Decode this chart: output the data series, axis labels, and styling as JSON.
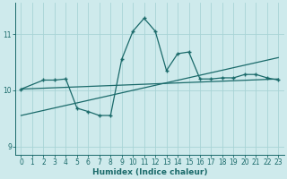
{
  "xlabel": "Humidex (Indice chaleur)",
  "xlim": [
    -0.5,
    23.5
  ],
  "ylim": [
    8.85,
    11.55
  ],
  "yticks": [
    9,
    10,
    11
  ],
  "xticks": [
    0,
    1,
    2,
    3,
    4,
    5,
    6,
    7,
    8,
    9,
    10,
    11,
    12,
    13,
    14,
    15,
    16,
    17,
    18,
    19,
    20,
    21,
    22,
    23
  ],
  "bg_color": "#ceeaec",
  "grid_color": "#a8d4d6",
  "line_color": "#1a6a6a",
  "line1_x": [
    0,
    2,
    3,
    4,
    5,
    6,
    7,
    8,
    9,
    10,
    11,
    12,
    13,
    14,
    15,
    16,
    17,
    18,
    19,
    20,
    21,
    22,
    23
  ],
  "line1_y": [
    10.02,
    10.18,
    10.18,
    10.2,
    9.68,
    9.62,
    9.55,
    9.55,
    10.55,
    11.05,
    11.28,
    11.05,
    10.35,
    10.65,
    10.68,
    10.2,
    10.2,
    10.22,
    10.22,
    10.28,
    10.28,
    10.22,
    10.18
  ],
  "line2_x": [
    0,
    23
  ],
  "line2_y": [
    9.55,
    10.58
  ],
  "line3_x": [
    0,
    23
  ],
  "line3_y": [
    10.02,
    10.2
  ],
  "tick_fontsize": 5.5,
  "xlabel_fontsize": 6.5
}
